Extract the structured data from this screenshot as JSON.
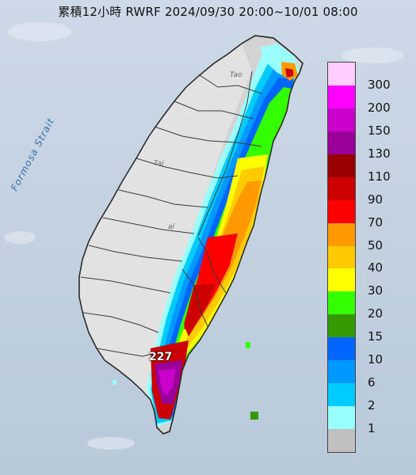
{
  "map": {
    "title": "累積12小時 RWRF 2024/09/30 20:00~10/01 08:00",
    "strait_label": "Formosa Strait",
    "peak_value": "227",
    "place_label_north": "Tao",
    "place_label_mid": "al",
    "place_label_central": "Tai",
    "colors": {
      "sea": "#c9d6e4",
      "land": "#cfcfcf",
      "border": "#3a3a3a"
    }
  },
  "legend": {
    "items": [
      {
        "label": "300",
        "color": "#ffccff"
      },
      {
        "label": "200",
        "color": "#ff00ff"
      },
      {
        "label": "150",
        "color": "#cc00cc"
      },
      {
        "label": "130",
        "color": "#990099"
      },
      {
        "label": "110",
        "color": "#990000"
      },
      {
        "label": "90",
        "color": "#cc0000"
      },
      {
        "label": "70",
        "color": "#ff0000"
      },
      {
        "label": "50",
        "color": "#ff9900"
      },
      {
        "label": "40",
        "color": "#ffcc00"
      },
      {
        "label": "30",
        "color": "#ffff00"
      },
      {
        "label": "20",
        "color": "#33ff00"
      },
      {
        "label": "15",
        "color": "#339900"
      },
      {
        "label": "10",
        "color": "#0066ff"
      },
      {
        "label": "6",
        "color": "#0099ff"
      },
      {
        "label": "2",
        "color": "#00ccff"
      },
      {
        "label": "1",
        "color": "#99ffff"
      },
      {
        "label": "",
        "color": "#c0c0c0"
      }
    ]
  }
}
